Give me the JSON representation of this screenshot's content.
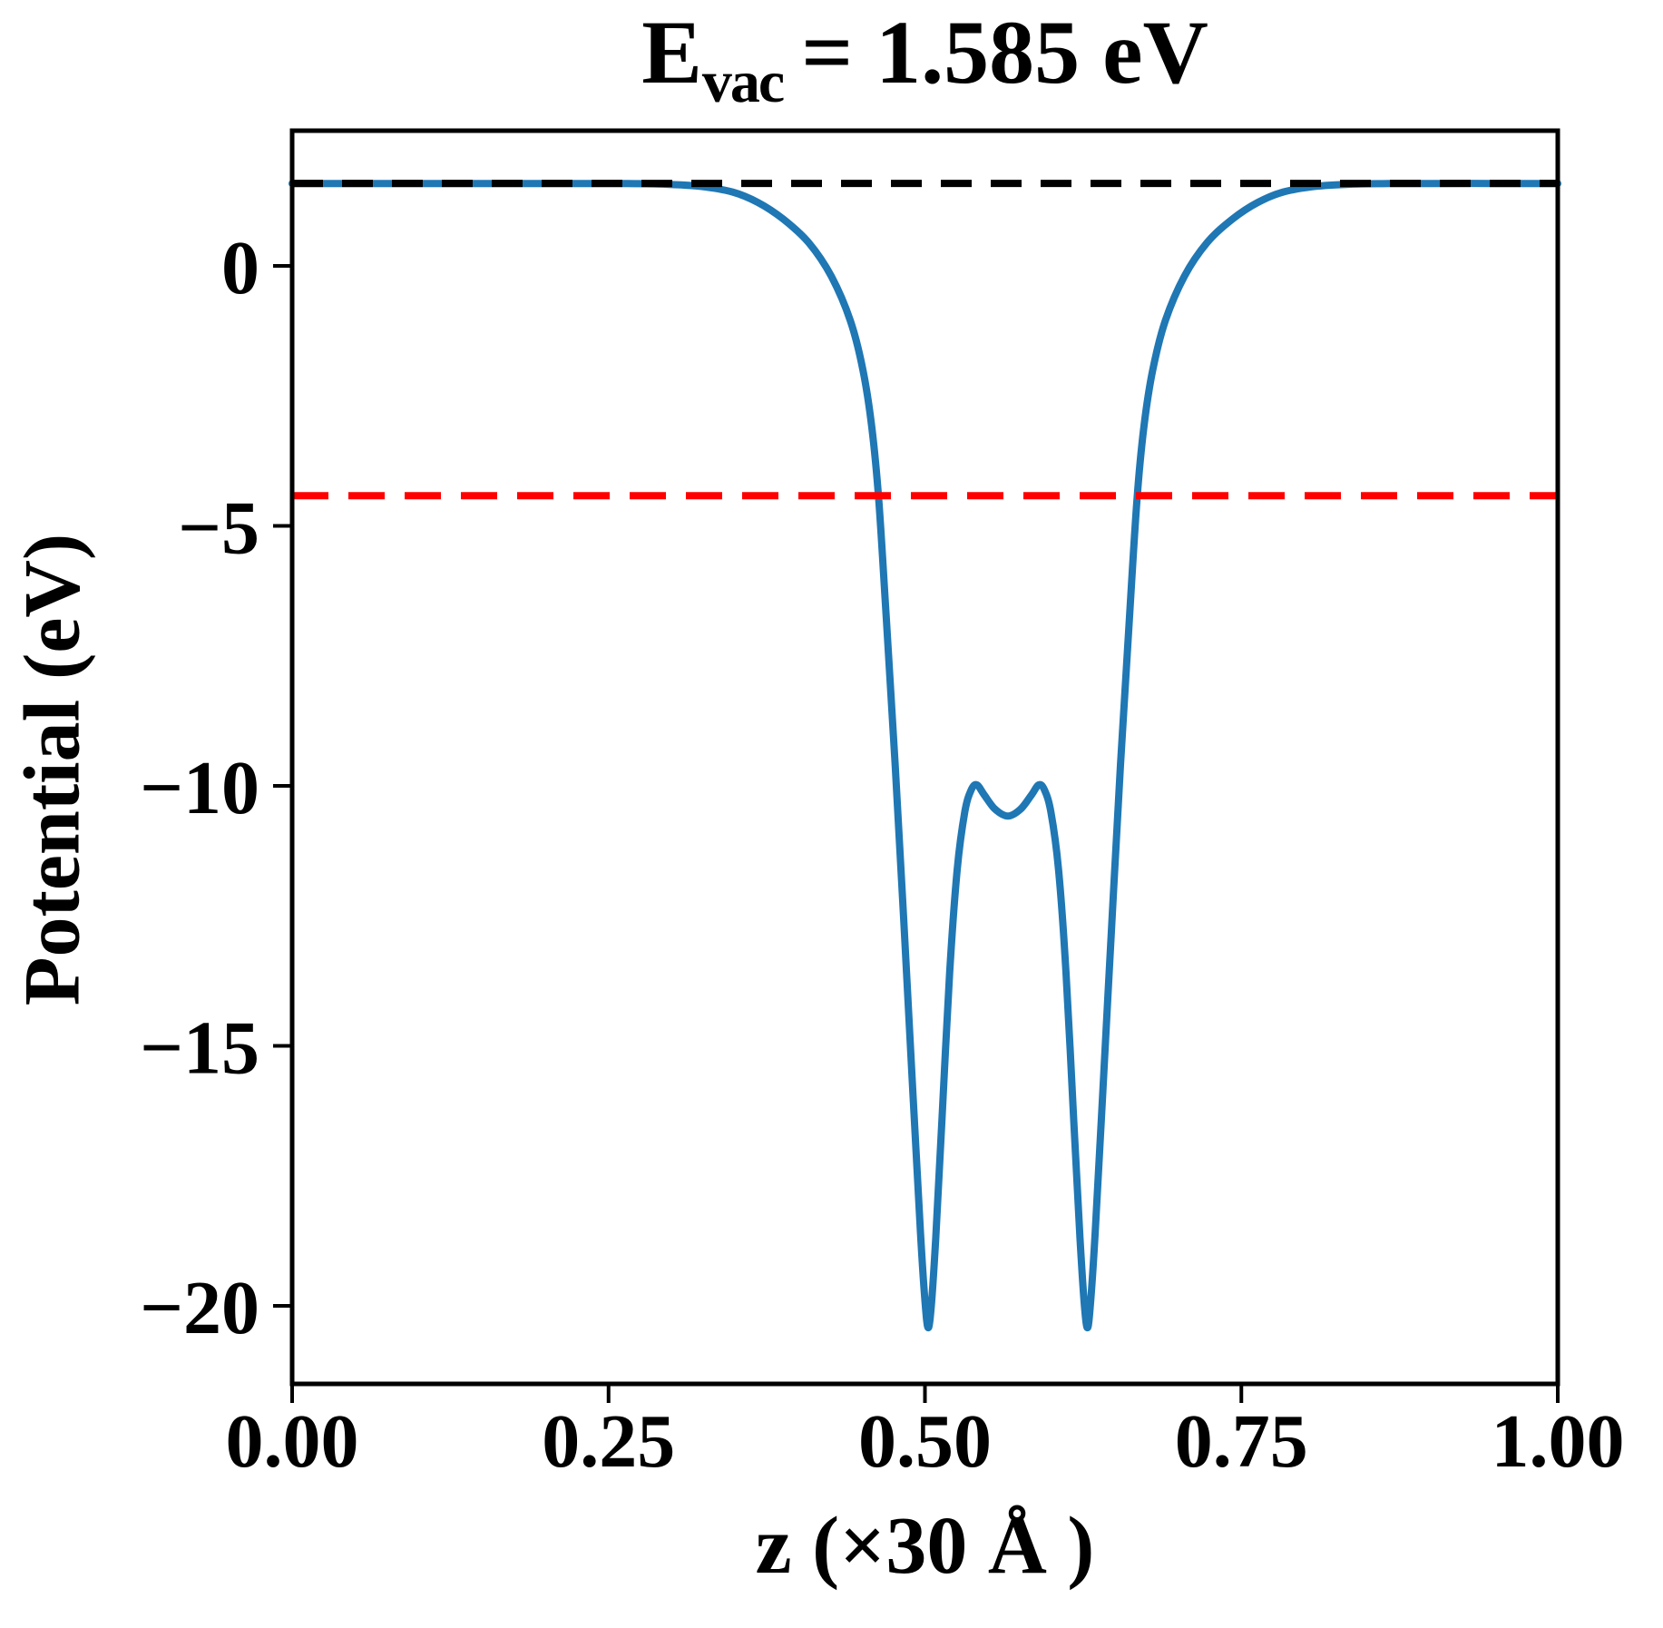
{
  "figure": {
    "title": {
      "symbol": "E",
      "subscript": "vac",
      "rest": "= 1.585 eV"
    }
  },
  "chart_data": {
    "type": "line",
    "title": "E_vac = 1.585 eV",
    "xlabel": "z (×30 Å )",
    "ylabel": "Potential (eV)",
    "xlim": [
      0,
      1
    ],
    "ylim": [
      -21.5,
      2.6
    ],
    "grid": false,
    "legend": "none",
    "xticks": {
      "values": [
        0,
        0.25,
        0.5,
        0.75,
        1.0
      ],
      "labels": [
        "0.00",
        "0.25",
        "0.50",
        "0.75",
        "1.00"
      ]
    },
    "yticks": {
      "values": [
        0,
        -5,
        -10,
        -15,
        -20
      ],
      "labels": [
        "0",
        "−5",
        "−10",
        "−15",
        "−20"
      ]
    },
    "annotations": {
      "E_vac_eV": 1.585,
      "vacuum_level_eV": 1.585,
      "red_reference_level_eV": -4.42
    },
    "series": [
      {
        "name": "planar-averaged-potential",
        "kind": "curve",
        "color": "#1f77b4",
        "linestyle": "solid",
        "linewidth": 8,
        "points": [
          [
            0.0,
            1.585
          ],
          [
            0.06,
            1.585
          ],
          [
            0.12,
            1.585
          ],
          [
            0.18,
            1.585
          ],
          [
            0.23,
            1.585
          ],
          [
            0.265,
            1.582
          ],
          [
            0.295,
            1.57
          ],
          [
            0.322,
            1.53
          ],
          [
            0.348,
            1.42
          ],
          [
            0.368,
            1.22
          ],
          [
            0.388,
            0.9
          ],
          [
            0.408,
            0.45
          ],
          [
            0.426,
            -0.2
          ],
          [
            0.441,
            -1.05
          ],
          [
            0.451,
            -2.0
          ],
          [
            0.458,
            -3.1
          ],
          [
            0.4635,
            -4.5
          ],
          [
            0.4695,
            -6.8
          ],
          [
            0.4765,
            -9.6
          ],
          [
            0.4835,
            -12.7
          ],
          [
            0.4905,
            -15.9
          ],
          [
            0.4965,
            -18.6
          ],
          [
            0.5,
            -19.9
          ],
          [
            0.5025,
            -20.42
          ],
          [
            0.505,
            -20.0
          ],
          [
            0.5085,
            -18.7
          ],
          [
            0.5135,
            -16.4
          ],
          [
            0.5195,
            -13.6
          ],
          [
            0.5255,
            -11.6
          ],
          [
            0.5315,
            -10.5
          ],
          [
            0.5365,
            -10.08
          ],
          [
            0.541,
            -9.98
          ],
          [
            0.547,
            -10.18
          ],
          [
            0.5555,
            -10.45
          ],
          [
            0.5655,
            -10.58
          ],
          [
            0.5755,
            -10.45
          ],
          [
            0.584,
            -10.18
          ],
          [
            0.59,
            -9.98
          ],
          [
            0.5945,
            -10.08
          ],
          [
            0.5995,
            -10.5
          ],
          [
            0.6055,
            -11.6
          ],
          [
            0.6115,
            -13.6
          ],
          [
            0.6175,
            -16.4
          ],
          [
            0.6225,
            -18.7
          ],
          [
            0.626,
            -20.0
          ],
          [
            0.6285,
            -20.42
          ],
          [
            0.631,
            -19.9
          ],
          [
            0.6345,
            -18.6
          ],
          [
            0.6405,
            -15.9
          ],
          [
            0.6475,
            -12.7
          ],
          [
            0.6545,
            -9.6
          ],
          [
            0.6615,
            -6.8
          ],
          [
            0.6675,
            -4.5
          ],
          [
            0.673,
            -3.1
          ],
          [
            0.68,
            -2.0
          ],
          [
            0.69,
            -1.05
          ],
          [
            0.705,
            -0.2
          ],
          [
            0.723,
            0.45
          ],
          [
            0.743,
            0.9
          ],
          [
            0.763,
            1.22
          ],
          [
            0.783,
            1.42
          ],
          [
            0.809,
            1.53
          ],
          [
            0.836,
            1.57
          ],
          [
            0.866,
            1.582
          ],
          [
            0.9,
            1.585
          ],
          [
            0.95,
            1.585
          ],
          [
            1.0,
            1.585
          ]
        ]
      },
      {
        "name": "vacuum-level",
        "kind": "hline",
        "y": 1.585,
        "color": "#000000",
        "linestyle": "dashed",
        "linewidth": 8
      },
      {
        "name": "reference-level",
        "kind": "hline",
        "y": -4.42,
        "color": "#ff0000",
        "linestyle": "dashed",
        "linewidth": 8
      }
    ]
  }
}
